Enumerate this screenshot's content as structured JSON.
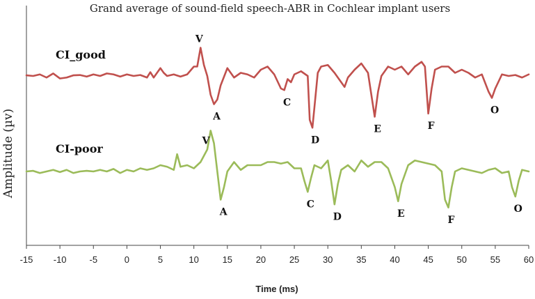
{
  "chart_data": {
    "type": "line",
    "title": "Grand average of sound-field speech-ABR in Cochlear implant users",
    "xlabel": "Time (ms)",
    "ylabel": "Amplitude (µv)",
    "xlim": [
      -15,
      60
    ],
    "xticks": [
      -15,
      -10,
      -5,
      0,
      5,
      10,
      15,
      20,
      25,
      30,
      35,
      40,
      45,
      50,
      55,
      60
    ],
    "y_ticks_shown": false,
    "grid": false,
    "legend": "none",
    "series": [
      {
        "name": "CI_good",
        "color": "#c0504d",
        "points": [
          [
            -15,
            0.02
          ],
          [
            -14,
            0.0
          ],
          [
            -13,
            0.05
          ],
          [
            -12,
            -0.05
          ],
          [
            -11,
            0.08
          ],
          [
            -10,
            -0.08
          ],
          [
            -9,
            -0.05
          ],
          [
            -8,
            0.02
          ],
          [
            -7,
            0.03
          ],
          [
            -6,
            -0.02
          ],
          [
            -5,
            0.05
          ],
          [
            -4,
            0.0
          ],
          [
            -3,
            0.08
          ],
          [
            -2,
            0.05
          ],
          [
            -1,
            -0.02
          ],
          [
            0,
            0.05
          ],
          [
            1,
            0.0
          ],
          [
            2,
            0.03
          ],
          [
            3,
            -0.05
          ],
          [
            3.5,
            0.12
          ],
          [
            4,
            -0.05
          ],
          [
            5,
            0.25
          ],
          [
            5.5,
            0.1
          ],
          [
            6,
            0.0
          ],
          [
            7,
            0.05
          ],
          [
            8,
            -0.02
          ],
          [
            9,
            0.05
          ],
          [
            10,
            0.3
          ],
          [
            10.5,
            0.3
          ],
          [
            11,
            0.9
          ],
          [
            11.5,
            0.35
          ],
          [
            12,
            0.0
          ],
          [
            12.5,
            -0.6
          ],
          [
            13,
            -0.9
          ],
          [
            13.5,
            -0.75
          ],
          [
            14,
            -0.3
          ],
          [
            15,
            0.25
          ],
          [
            16,
            -0.05
          ],
          [
            17,
            0.1
          ],
          [
            18,
            0.05
          ],
          [
            19,
            -0.05
          ],
          [
            20,
            0.2
          ],
          [
            21,
            0.3
          ],
          [
            22,
            0.05
          ],
          [
            23,
            -0.4
          ],
          [
            23.5,
            -0.45
          ],
          [
            24,
            -0.1
          ],
          [
            24.5,
            -0.2
          ],
          [
            25,
            0.05
          ],
          [
            26,
            0.15
          ],
          [
            27,
            0.0
          ],
          [
            27.3,
            -1.4
          ],
          [
            27.7,
            -1.65
          ],
          [
            28,
            -1.0
          ],
          [
            28.5,
            0.1
          ],
          [
            29,
            0.3
          ],
          [
            30,
            0.35
          ],
          [
            31,
            0.1
          ],
          [
            32,
            -0.2
          ],
          [
            32.5,
            -0.35
          ],
          [
            33,
            -0.05
          ],
          [
            34,
            0.2
          ],
          [
            35,
            0.4
          ],
          [
            36,
            0.1
          ],
          [
            36.5,
            -0.6
          ],
          [
            37,
            -1.3
          ],
          [
            37.5,
            -0.5
          ],
          [
            38,
            0.0
          ],
          [
            39,
            0.3
          ],
          [
            40,
            0.2
          ],
          [
            41,
            0.3
          ],
          [
            42,
            0.05
          ],
          [
            43,
            0.3
          ],
          [
            44,
            0.45
          ],
          [
            44.5,
            0.3
          ],
          [
            45,
            -1.2
          ],
          [
            45.5,
            -0.4
          ],
          [
            46,
            0.2
          ],
          [
            47,
            0.3
          ],
          [
            48,
            0.3
          ],
          [
            49,
            0.1
          ],
          [
            50,
            0.2
          ],
          [
            51,
            0.1
          ],
          [
            52,
            -0.05
          ],
          [
            53,
            0.05
          ],
          [
            54,
            -0.5
          ],
          [
            54.5,
            -0.7
          ],
          [
            55,
            -0.4
          ],
          [
            56,
            0.05
          ],
          [
            57,
            0.0
          ],
          [
            58,
            0.03
          ],
          [
            59,
            -0.05
          ],
          [
            60,
            0.05
          ]
        ],
        "peak_labels": [
          {
            "label": "V",
            "x": 11
          },
          {
            "label": "A",
            "x": 13
          },
          {
            "label": "C",
            "x": 23.5
          },
          {
            "label": "D",
            "x": 27.7
          },
          {
            "label": "E",
            "x": 37
          },
          {
            "label": "F",
            "x": 45
          },
          {
            "label": "O",
            "x": 54.5
          }
        ]
      },
      {
        "name": "CI-poor",
        "color": "#9bbb59",
        "points": [
          [
            -15,
            0.0
          ],
          [
            -14,
            0.02
          ],
          [
            -13,
            -0.05
          ],
          [
            -12,
            0.0
          ],
          [
            -11,
            0.05
          ],
          [
            -10,
            -0.02
          ],
          [
            -9,
            0.05
          ],
          [
            -8,
            -0.05
          ],
          [
            -7,
            0.0
          ],
          [
            -6,
            0.02
          ],
          [
            -5,
            0.0
          ],
          [
            -4,
            0.05
          ],
          [
            -3,
            0.0
          ],
          [
            -2,
            0.08
          ],
          [
            -1,
            -0.05
          ],
          [
            0,
            0.05
          ],
          [
            1,
            0.0
          ],
          [
            2,
            0.1
          ],
          [
            3,
            0.05
          ],
          [
            4,
            0.1
          ],
          [
            5,
            0.2
          ],
          [
            6,
            0.15
          ],
          [
            7,
            0.05
          ],
          [
            7.5,
            0.55
          ],
          [
            8,
            0.15
          ],
          [
            9,
            0.2
          ],
          [
            10,
            0.1
          ],
          [
            11,
            0.3
          ],
          [
            11.5,
            0.5
          ],
          [
            12,
            0.7
          ],
          [
            12.5,
            1.3
          ],
          [
            13,
            0.9
          ],
          [
            13.5,
            0.0
          ],
          [
            14,
            -0.9
          ],
          [
            14.5,
            -0.5
          ],
          [
            15,
            0.0
          ],
          [
            16,
            0.3
          ],
          [
            17,
            0.05
          ],
          [
            18,
            0.2
          ],
          [
            19,
            0.2
          ],
          [
            20,
            0.2
          ],
          [
            21,
            0.3
          ],
          [
            22,
            0.3
          ],
          [
            23,
            0.25
          ],
          [
            24,
            0.3
          ],
          [
            25,
            0.1
          ],
          [
            26,
            0.1
          ],
          [
            26.5,
            -0.3
          ],
          [
            27,
            -0.65
          ],
          [
            27.5,
            -0.2
          ],
          [
            28,
            0.2
          ],
          [
            29,
            0.1
          ],
          [
            30,
            0.35
          ],
          [
            30.5,
            -0.3
          ],
          [
            31,
            -1.05
          ],
          [
            31.5,
            -0.4
          ],
          [
            32,
            0.05
          ],
          [
            33,
            0.2
          ],
          [
            34,
            0.0
          ],
          [
            35,
            0.35
          ],
          [
            36,
            0.15
          ],
          [
            37,
            0.3
          ],
          [
            38,
            0.3
          ],
          [
            39,
            0.1
          ],
          [
            40,
            -0.5
          ],
          [
            40.5,
            -0.95
          ],
          [
            41,
            -0.4
          ],
          [
            42,
            0.2
          ],
          [
            43,
            0.35
          ],
          [
            44,
            0.3
          ],
          [
            45,
            0.25
          ],
          [
            46,
            0.2
          ],
          [
            47,
            0.0
          ],
          [
            47.5,
            -0.9
          ],
          [
            48,
            -1.15
          ],
          [
            48.5,
            -0.5
          ],
          [
            49,
            0.0
          ],
          [
            50,
            0.1
          ],
          [
            51,
            0.05
          ],
          [
            52,
            0.0
          ],
          [
            53,
            -0.05
          ],
          [
            54,
            0.05
          ],
          [
            55,
            0.1
          ],
          [
            56,
            -0.05
          ],
          [
            57,
            0.0
          ],
          [
            57.5,
            -0.5
          ],
          [
            58,
            -0.8
          ],
          [
            58.5,
            -0.3
          ],
          [
            59,
            0.05
          ],
          [
            60,
            0.0
          ]
        ],
        "peak_labels": [
          {
            "label": "V",
            "x": 12
          },
          {
            "label": "A",
            "x": 14
          },
          {
            "label": "C",
            "x": 27
          },
          {
            "label": "D",
            "x": 31
          },
          {
            "label": "E",
            "x": 40.5
          },
          {
            "label": "F",
            "x": 48
          },
          {
            "label": "O",
            "x": 58
          }
        ]
      }
    ]
  }
}
